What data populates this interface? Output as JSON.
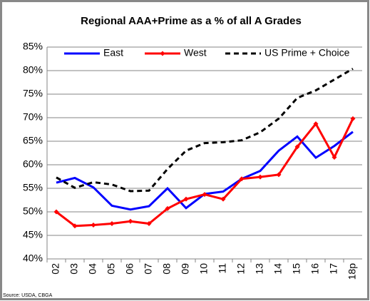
{
  "chart_data": {
    "type": "line",
    "title": "Regional AAA+Prime  as a % of all A Grades",
    "source": "Source: USDA, CBGA",
    "categories": [
      "02",
      "03",
      "04",
      "05",
      "06",
      "07",
      "08",
      "09",
      "10",
      "11",
      "12",
      "13",
      "14",
      "15",
      "16",
      "17",
      "18p"
    ],
    "series": [
      {
        "name": "East",
        "color": "#0000ff",
        "values": [
          56.2,
          57.2,
          55.2,
          51.3,
          50.5,
          51.2,
          55.0,
          50.8,
          53.8,
          54.3,
          57.0,
          58.7,
          63.0,
          66.0,
          61.5,
          64.0,
          67.0
        ]
      },
      {
        "name": "West",
        "color": "#ff0000",
        "marker": "diamond",
        "values": [
          50.0,
          47.0,
          47.2,
          47.5,
          48.0,
          47.5,
          50.7,
          52.7,
          53.7,
          52.7,
          57.0,
          57.4,
          57.9,
          63.8,
          68.7,
          61.6,
          69.8
        ]
      },
      {
        "name": "US Prime + Choice",
        "color": "#000000",
        "dash": true,
        "values": [
          57.3,
          55.1,
          56.3,
          55.8,
          54.4,
          54.5,
          59.1,
          63.0,
          64.6,
          64.8,
          65.2,
          66.9,
          69.8,
          74.2,
          75.8,
          78.1,
          80.4
        ]
      }
    ],
    "ylim": [
      40,
      85
    ],
    "yticks": [
      {
        "value": 40,
        "label": "40%"
      },
      {
        "value": 45,
        "label": "45%"
      },
      {
        "value": 50,
        "label": "50%"
      },
      {
        "value": 55,
        "label": "55%"
      },
      {
        "value": 60,
        "label": "60%"
      },
      {
        "value": 65,
        "label": "65%"
      },
      {
        "value": 70,
        "label": "70%"
      },
      {
        "value": 75,
        "label": "75%"
      },
      {
        "value": 80,
        "label": "80%"
      },
      {
        "value": 85,
        "label": "85%"
      }
    ],
    "grid": true
  }
}
